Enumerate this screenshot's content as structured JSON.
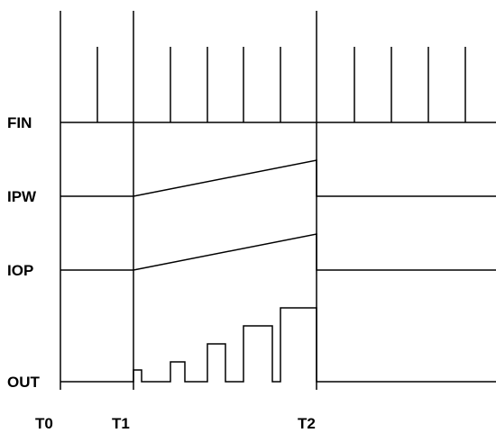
{
  "diagram": {
    "signals": [
      "FIN",
      "IPW",
      "IOP",
      "OUT"
    ],
    "time_markers": [
      "T0",
      "T1",
      "T2"
    ],
    "colors": {
      "line": "#000000",
      "background": "#ffffff",
      "text": "#000000"
    }
  }
}
